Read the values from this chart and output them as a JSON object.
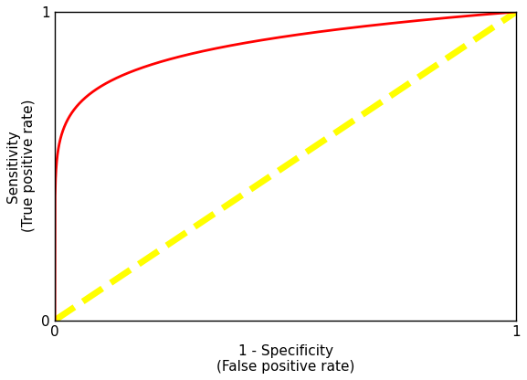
{
  "title": "",
  "xlabel": "1 - Specificity\n(False positive rate)",
  "ylabel": "Sensitivity\n(True positive rate)",
  "xlim": [
    0,
    1
  ],
  "ylim": [
    0,
    1
  ],
  "roc_curve_color": "#FF0000",
  "roc_curve_linewidth": 2.0,
  "diagonal_color": "#FFFF00",
  "diagonal_linewidth": 5.0,
  "diagonal_linestyle": "--",
  "background_color": "#FFFFFF",
  "axis_color": "#000000",
  "tick_label_fontsize": 11,
  "axis_label_fontsize": 11,
  "xticks": [
    0,
    1
  ],
  "yticks": [
    0,
    1
  ],
  "roc_shape_power": 0.12,
  "figsize": [
    5.77,
    4.16
  ],
  "dpi": 100
}
